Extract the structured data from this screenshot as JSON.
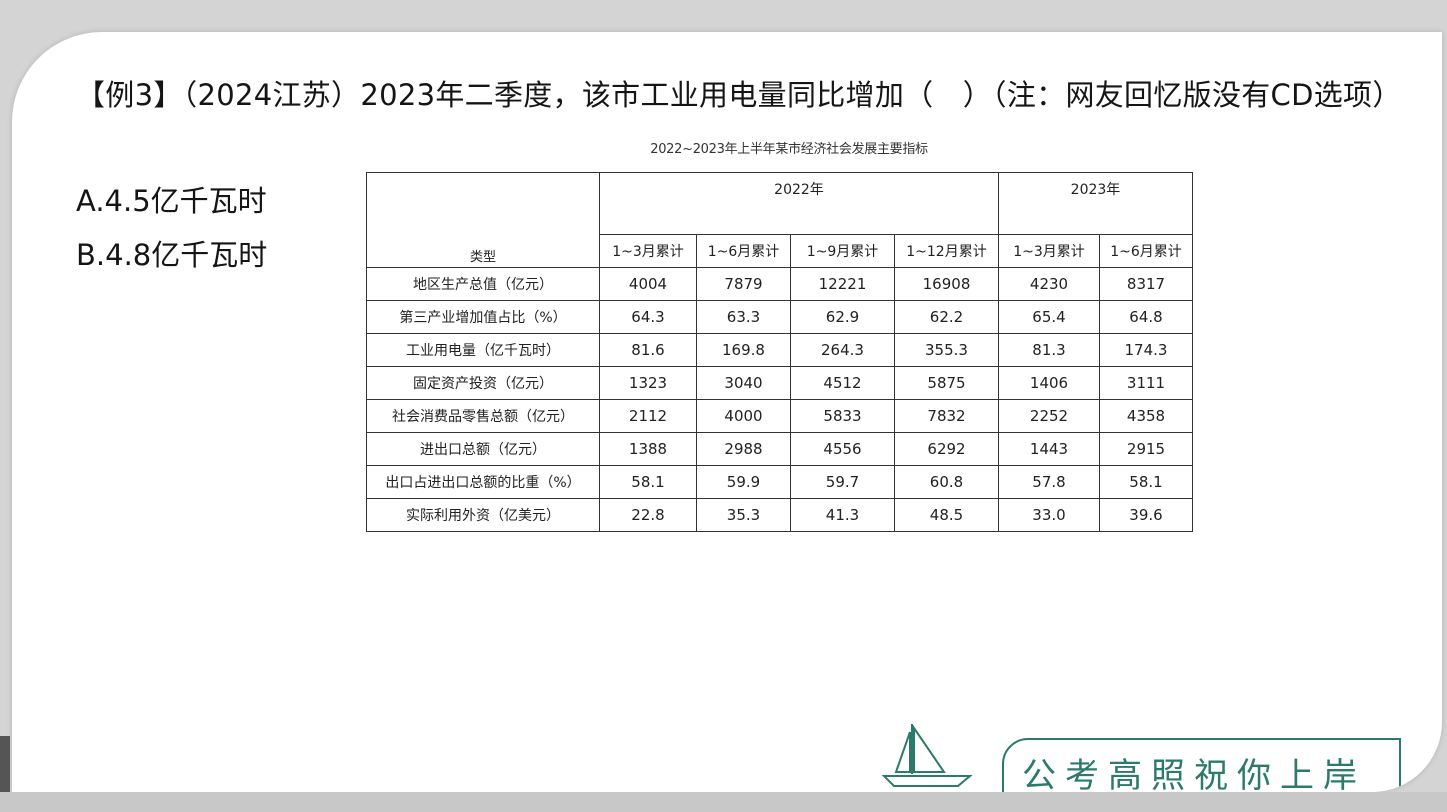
{
  "question": {
    "text": "【例3】（2024江苏）2023年二季度，该市工业用电量同比增加（　）（注：网友回忆版没有CD选项）"
  },
  "options": {
    "a": "A.4.5亿千瓦时",
    "b": "B.4.8亿千瓦时"
  },
  "table": {
    "title": "2022~2023年上半年某市经济社会发展主要指标",
    "type_header": "类型",
    "year_2022": "2022年",
    "year_2023": "2023年",
    "subheaders": [
      "1~3月累计",
      "1~6月累计",
      "1~9月累计",
      "1~12月累计",
      "1~3月累计",
      "1~6月累计"
    ],
    "rows": [
      {
        "label": "地区生产总值（亿元）",
        "values": [
          "4004",
          "7879",
          "12221",
          "16908",
          "4230",
          "8317"
        ]
      },
      {
        "label": "第三产业增加值占比（%）",
        "values": [
          "64.3",
          "63.3",
          "62.9",
          "62.2",
          "65.4",
          "64.8"
        ]
      },
      {
        "label": "工业用电量（亿千瓦时）",
        "values": [
          "81.6",
          "169.8",
          "264.3",
          "355.3",
          "81.3",
          "174.3"
        ]
      },
      {
        "label": "固定资产投资（亿元）",
        "values": [
          "1323",
          "3040",
          "4512",
          "5875",
          "1406",
          "3111"
        ]
      },
      {
        "label": "社会消费品零售总额（亿元）",
        "values": [
          "2112",
          "4000",
          "5833",
          "7832",
          "2252",
          "4358"
        ]
      },
      {
        "label": "进出口总额（亿元）",
        "values": [
          "1388",
          "2988",
          "4556",
          "6292",
          "1443",
          "2915"
        ]
      },
      {
        "label": "出口占进出口总额的比重（%）",
        "values": [
          "58.1",
          "59.9",
          "59.7",
          "60.8",
          "57.8",
          "58.1"
        ]
      },
      {
        "label": "实际利用外资（亿美元）",
        "values": [
          "22.8",
          "35.3",
          "41.3",
          "48.5",
          "33.0",
          "39.6"
        ]
      }
    ]
  },
  "footer": {
    "slogan": "公考高照祝你上岸",
    "icon": "sailboat-icon",
    "accent": "#2b7a6b"
  }
}
